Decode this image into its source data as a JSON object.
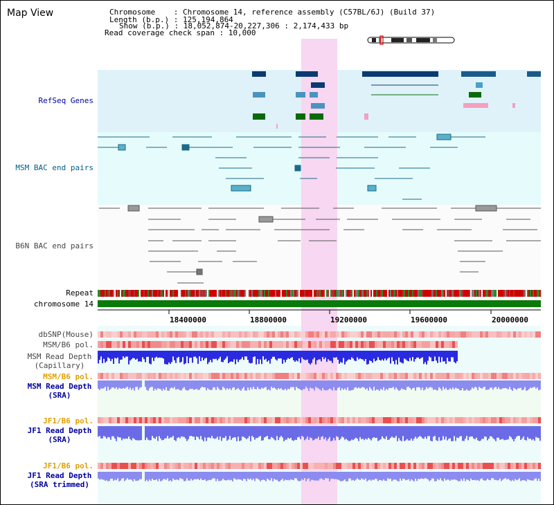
{
  "title": "Map View",
  "header": {
    "chromosome": "Chromosome    : Chromosome 14, reference assembly (C57BL/6J) (Build 37)",
    "length": "Length (b.p.) : 125,194,864",
    "show": "Show (b.p.) : 18,052,874-20,227,306 : 2,174,433 bp",
    "coverage": "Read coverage check span : 10,000"
  },
  "tracks": {
    "refseq": "RefSeq Genes",
    "msm_bac": "MSM BAC end pairs",
    "b6n_bac": "B6N BAC end pairs",
    "repeat": "Repeat",
    "chromosome": "chromosome 14",
    "dbsnp": "dbSNP(Mouse)",
    "msm_b6_pol": "MSM/B6 pol.",
    "msm_depth_cap_1": "MSM Read Depth",
    "msm_depth_cap_2": "(Capillary)",
    "msm_b6_pol2": "MSM/B6 pol.",
    "msm_depth_sra_1": "MSM Read Depth",
    "msm_depth_sra_2": "(SRA)",
    "jf1_pol1": "JF1/B6 pol.",
    "jf1_depth_sra_1": "JF1 Read Depth",
    "jf1_depth_sra_2": "(SRA)",
    "jf1_pol2": "JF1/B6 pol.",
    "jf1_depth_trim_1": "JF1 Read Depth",
    "jf1_depth_trim_2": "(SRA trimmed)"
  },
  "axis_ticks": [
    "18400000",
    "18800000",
    "19200000",
    "19600000",
    "20000000"
  ],
  "colors": {
    "refseq_bg": "#dff2fa",
    "msm_bac_bg": "#e4f9f9",
    "highlight": "#f7d7f2",
    "chromosome": "#0a7a0a",
    "msm_label": "#005c8a",
    "pol_label": "#e0a000",
    "depth_label": "#00009e"
  }
}
